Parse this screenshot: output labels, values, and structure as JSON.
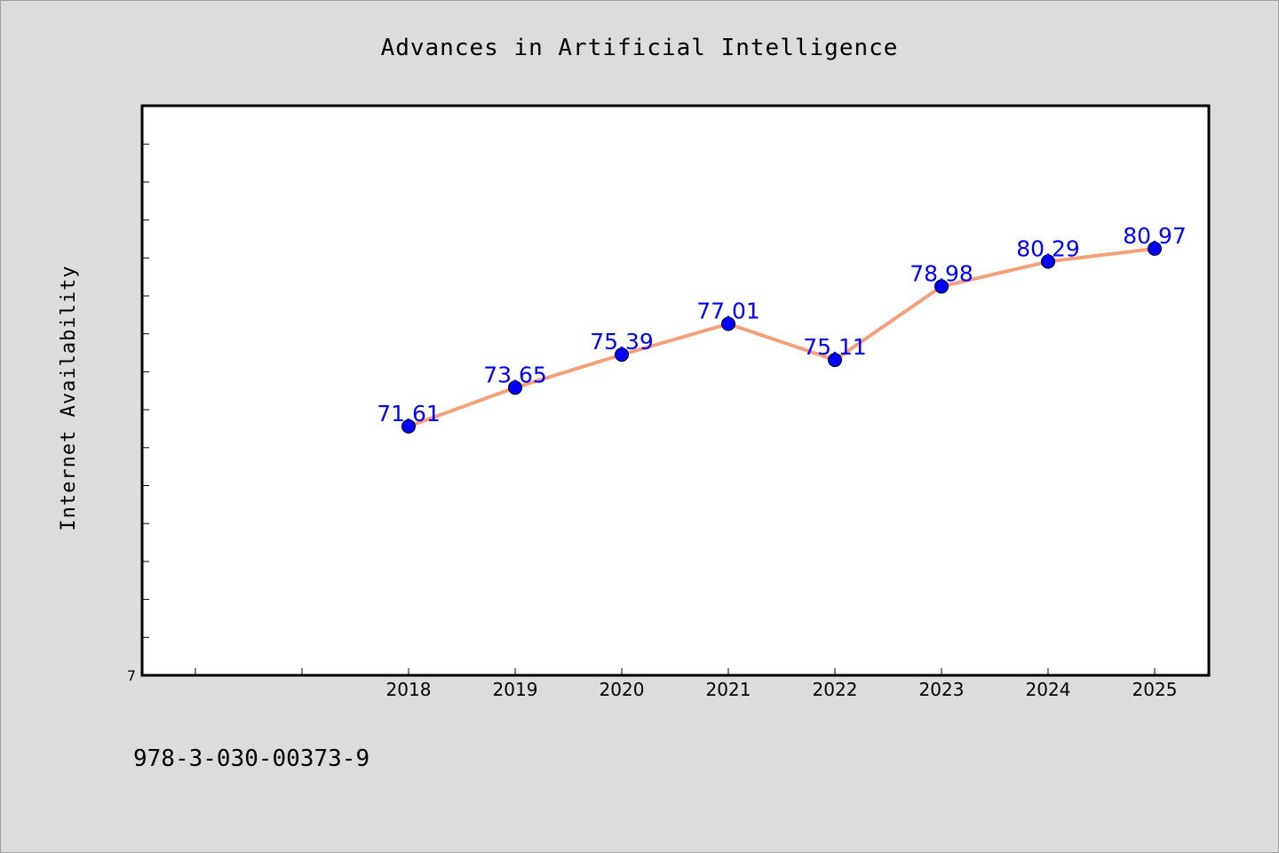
{
  "chart_data": {
    "type": "line",
    "title": "Advances in Artificial Intelligence",
    "xlabel": "",
    "ylabel": "Internet Availability",
    "categories": [
      "2018",
      "2019",
      "2020",
      "2021",
      "2022",
      "2023",
      "2024",
      "2025"
    ],
    "series": [
      {
        "values": [
          71.61,
          73.65,
          75.39,
          77.01,
          75.11,
          78.98,
          80.29,
          80.97
        ],
        "labels": [
          "71.61",
          "73.65",
          "75.39",
          "77.01",
          "75.11",
          "78.98",
          "80.29",
          "80.97"
        ],
        "line_color": "#f4a07c",
        "marker_color": "#0000ff"
      }
    ],
    "ytick_labels": [
      "7"
    ],
    "ylim": [
      58.5,
      88.5
    ],
    "grid": false,
    "legend": "none",
    "colors": {
      "background": "#dcdcdc",
      "plot_background": "#ffffff",
      "label": "#0000ff"
    }
  },
  "footer": {
    "isbn": "978-3-030-00373-9"
  }
}
